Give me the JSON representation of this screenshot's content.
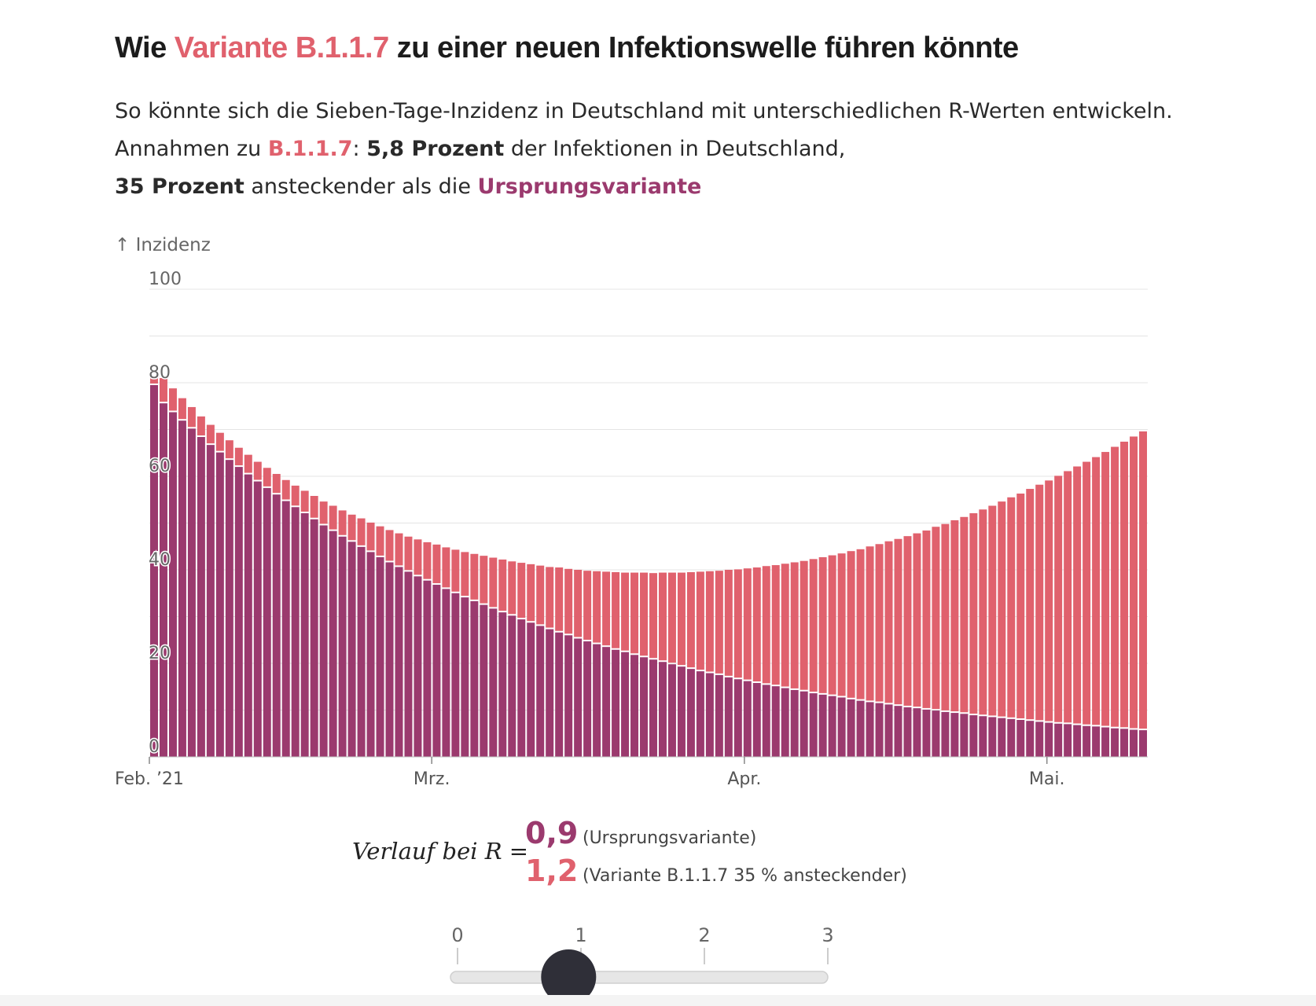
{
  "header": {
    "title_pre": "Wie ",
    "title_variant": "Variante B.1.1.7",
    "title_post": " zu einer neuen Infektionswelle führen könnte",
    "subtitle_1": "So könnte sich die Sieben-Tage-Inzidenz in Deutschland mit unterschiedlichen R-Werten entwickeln. Annahmen zu ",
    "subtitle_variant": "B.1.1.7",
    "subtitle_2": ": ",
    "subtitle_share": "5,8 Prozent",
    "subtitle_3": " der Infektionen in Deutschland, ",
    "subtitle_contagious": "35 Prozent",
    "subtitle_4": " ansteckender als die ",
    "subtitle_original": "Ursprungsvariante"
  },
  "colors": {
    "original": "#9b3a6e",
    "variant": "#e0616d",
    "grid": "#e4e4e4",
    "axis_text": "#666666"
  },
  "chart_data": {
    "type": "bar",
    "stacked": true,
    "ylabel": "↑ Inzidenz",
    "ylim": [
      0,
      100
    ],
    "yticks": [
      0,
      20,
      40,
      60,
      80,
      100
    ],
    "grid": true,
    "x_start": "2021-02-01",
    "x_end": "2021-05-11",
    "xticks": [
      {
        "date": "2021-02-01",
        "label": "Feb. ’21"
      },
      {
        "date": "2021-03-01",
        "label": "Mrz."
      },
      {
        "date": "2021-04-01",
        "label": "Apr."
      },
      {
        "date": "2021-05-01",
        "label": "Mai."
      }
    ],
    "series": [
      {
        "name": "Ursprungsvariante",
        "color": "#9b3a6e",
        "values": [
          79.5,
          75.6,
          73.7,
          71.9,
          70.2,
          68.4,
          66.7,
          65.1,
          63.5,
          62,
          60.4,
          58.9,
          57.5,
          56.1,
          54.7,
          53.4,
          52.1,
          50.8,
          49.5,
          48.3,
          47.1,
          46,
          44.9,
          43.8,
          42.7,
          41.6,
          40.6,
          39.6,
          38.6,
          37.7,
          36.8,
          35.9,
          35,
          34.1,
          33.3,
          32.5,
          31.7,
          30.9,
          30.2,
          29.4,
          28.7,
          28,
          27.3,
          26.6,
          26,
          25.3,
          24.7,
          24.1,
          23.5,
          22.9,
          22.4,
          21.8,
          21.3,
          20.8,
          20.3,
          19.8,
          19.3,
          18.8,
          18.3,
          17.9,
          17.5,
          17,
          16.6,
          16.2,
          15.8,
          15.4,
          15.1,
          14.7,
          14.3,
          14,
          13.6,
          13.3,
          13,
          12.7,
          12.3,
          12,
          11.7,
          11.5,
          11.2,
          10.9,
          10.6,
          10.4,
          10.1,
          9.9,
          9.6,
          9.4,
          9.2,
          8.9,
          8.7,
          8.5,
          8.3,
          8.1,
          7.9,
          7.7,
          7.5,
          7.3,
          7.1,
          7,
          6.8,
          6.6,
          6.5,
          6.3,
          6.1,
          6,
          5.8,
          5.7
        ]
      },
      {
        "name": "Variante B.1.1.7",
        "color": "#e0616d",
        "values": [
          1.5,
          5.4,
          5.1,
          4.8,
          4.6,
          4.4,
          4.3,
          4.2,
          4.2,
          4.1,
          4.2,
          4.2,
          4.3,
          4.4,
          4.5,
          4.6,
          4.8,
          5,
          5.1,
          5.4,
          5.6,
          5.8,
          6.1,
          6.3,
          6.6,
          6.9,
          7.2,
          7.5,
          7.9,
          8.2,
          8.6,
          8.9,
          9.3,
          9.7,
          10.1,
          10.5,
          10.9,
          11.3,
          11.6,
          12.1,
          12.5,
          12.9,
          13.3,
          13.9,
          14.2,
          14.7,
          15.1,
          15.6,
          16.1,
          16.6,
          17,
          17.6,
          18.1,
          18.5,
          19.1,
          19.6,
          20.1,
          20.7,
          21.3,
          21.8,
          22.3,
          23,
          23.5,
          24.1,
          24.7,
          25.4,
          25.9,
          26.6,
          27.3,
          27.9,
          28.7,
          29.4,
          30.1,
          30.8,
          31.7,
          32.4,
          33.3,
          34,
          34.9,
          35.7,
          36.6,
          37.4,
          38.3,
          39.3,
          40.2,
          41.2,
          42.1,
          43.2,
          44.2,
          45.2,
          46.3,
          47.4,
          48.4,
          49.6,
          50.7,
          51.8,
          53,
          54.1,
          55.3,
          56.5,
          57.6,
          58.9,
          60.2,
          61.4,
          62.7,
          63.9
        ]
      }
    ]
  },
  "control": {
    "label": "Verlauf bei R =",
    "r_original": "0,9",
    "r_original_note": "(Ursprungsvariante)",
    "r_variant": "1,2",
    "r_variant_note": "(Variante B.1.1.7 35 % ansteckender)",
    "slider": {
      "min": 0,
      "max": 3,
      "value": 0.9,
      "ticks": [
        "0",
        "1",
        "2",
        "3"
      ]
    }
  }
}
